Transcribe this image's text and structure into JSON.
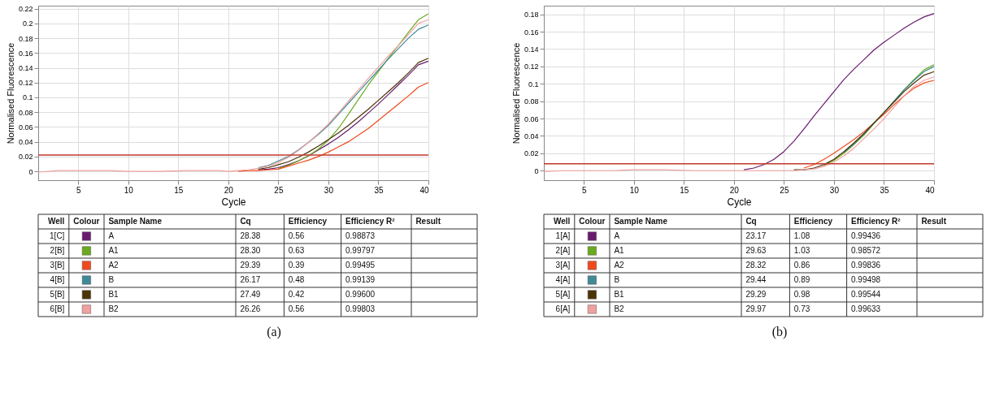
{
  "chart_data": [
    {
      "type": "line",
      "xlabel": "Cycle",
      "ylabel": "Normalised Fluorescence",
      "xlim": [
        1,
        40
      ],
      "xticks": [
        5,
        10,
        15,
        20,
        25,
        30,
        35,
        40
      ],
      "ylim": [
        -0.012,
        0.224
      ],
      "yticks": [
        0,
        0.02,
        0.04,
        0.06,
        0.08,
        0.1,
        0.12,
        0.14,
        0.16,
        0.18,
        0.2,
        0.22
      ],
      "grid": true,
      "legend": "bottom",
      "legend_title": "Sample Name",
      "line_style": "solid",
      "x": [
        1,
        3,
        5,
        8,
        10,
        13,
        16,
        19,
        20,
        21,
        22,
        23,
        24,
        25,
        26,
        27,
        28,
        29,
        30,
        31,
        32,
        33,
        34,
        35,
        36,
        37,
        38,
        39,
        40
      ],
      "series": [
        {
          "name": "A",
          "color": "#6a1b6e",
          "values": [
            null,
            null,
            null,
            null,
            null,
            null,
            null,
            null,
            null,
            null,
            null,
            0.002,
            0.003,
            0.005,
            0.009,
            0.014,
            0.021,
            0.029,
            0.037,
            0.046,
            0.056,
            0.067,
            0.079,
            0.091,
            0.104,
            0.117,
            0.13,
            0.144,
            0.149
          ]
        },
        {
          "name": "A1",
          "color": "#6aaa1e",
          "values": [
            null,
            null,
            null,
            null,
            null,
            null,
            null,
            null,
            null,
            null,
            null,
            null,
            null,
            0.004,
            0.008,
            0.014,
            0.021,
            0.03,
            0.042,
            0.058,
            0.077,
            0.097,
            0.117,
            0.135,
            0.153,
            0.17,
            0.188,
            0.205,
            0.213
          ]
        },
        {
          "name": "A2",
          "color": "#f04a1c",
          "values": [
            null,
            null,
            null,
            null,
            null,
            null,
            null,
            null,
            null,
            0,
            0.001,
            0.001,
            0.002,
            0.003,
            0.007,
            0.011,
            0.015,
            0.02,
            0.026,
            0.033,
            0.04,
            0.049,
            0.058,
            0.069,
            0.08,
            0.091,
            0.102,
            0.114,
            0.12
          ]
        },
        {
          "name": "B",
          "color": "#3f8a96",
          "values": [
            null,
            null,
            null,
            null,
            null,
            null,
            null,
            null,
            null,
            null,
            null,
            0.005,
            0.008,
            0.014,
            0.02,
            0.029,
            0.039,
            0.05,
            0.062,
            0.077,
            0.092,
            0.107,
            0.122,
            0.137,
            0.152,
            0.166,
            0.18,
            0.192,
            0.198
          ]
        },
        {
          "name": "B1",
          "color": "#4a3408",
          "values": [
            null,
            null,
            null,
            null,
            null,
            null,
            null,
            null,
            null,
            null,
            null,
            0.003,
            0.005,
            0.009,
            0.013,
            0.019,
            0.026,
            0.034,
            0.043,
            0.052,
            0.062,
            0.073,
            0.084,
            0.096,
            0.108,
            0.12,
            0.133,
            0.147,
            0.153
          ]
        },
        {
          "name": "B2",
          "color": "#f0a0a0",
          "values": [
            -0.001,
            0.001,
            0.001,
            0.001,
            0,
            0,
            0.001,
            0.001,
            0,
            0.001,
            0.002,
            0.004,
            0.007,
            0.012,
            0.019,
            0.028,
            0.039,
            0.051,
            0.064,
            0.079,
            0.095,
            0.11,
            0.126,
            0.141,
            0.156,
            0.17,
            0.185,
            0.2,
            0.205
          ]
        }
      ],
      "ref_lines": [
        {
          "axis": "y",
          "value": 0.022,
          "color": "#c0392b"
        }
      ],
      "annotations": [
        "Well",
        "Colour",
        "Cq",
        "Efficiency",
        "Efficiency R²",
        "Result",
        "1[C]",
        "28.38",
        "0.56",
        "0.98873",
        "2[B]",
        "28.30",
        "0.63",
        "0.99797",
        "3[B]",
        "29.39",
        "0.39",
        "0.99495",
        "4[B]",
        "26.17",
        "0.48",
        "0.99139",
        "5[B]",
        "27.49",
        "0.42",
        "0.99600",
        "6[B]",
        "26.26",
        "0.56",
        "0.99803",
        "(a)"
      ]
    },
    {
      "type": "line",
      "xlabel": "Cycle",
      "ylabel": "Normalised Fluorescence",
      "xlim": [
        1,
        40
      ],
      "xticks": [
        5,
        10,
        15,
        20,
        25,
        30,
        35,
        40
      ],
      "ylim": [
        -0.011,
        0.19
      ],
      "yticks": [
        0,
        0.02,
        0.04,
        0.06,
        0.08,
        0.1,
        0.12,
        0.14,
        0.16,
        0.18
      ],
      "grid": true,
      "legend": "bottom",
      "legend_title": "Sample Name",
      "line_style": "solid",
      "x": [
        1,
        3,
        5,
        8,
        10,
        13,
        16,
        19,
        20,
        21,
        22,
        23,
        24,
        25,
        26,
        27,
        28,
        29,
        30,
        31,
        32,
        33,
        34,
        35,
        36,
        37,
        38,
        39,
        40
      ],
      "series": [
        {
          "name": "A",
          "color": "#6a1b6e",
          "values": [
            null,
            null,
            null,
            null,
            null,
            null,
            null,
            null,
            null,
            0.001,
            0.003,
            0.007,
            0.013,
            0.022,
            0.034,
            0.048,
            0.063,
            0.077,
            0.091,
            0.105,
            0.117,
            0.128,
            0.139,
            0.148,
            0.156,
            0.164,
            0.171,
            0.177,
            0.181
          ]
        },
        {
          "name": "A1",
          "color": "#6aaa1e",
          "values": [
            null,
            null,
            null,
            null,
            null,
            null,
            null,
            null,
            null,
            null,
            null,
            null,
            null,
            null,
            null,
            null,
            null,
            0.006,
            0.012,
            0.02,
            0.03,
            0.041,
            0.054,
            0.067,
            0.08,
            0.093,
            0.105,
            0.116,
            0.122
          ]
        },
        {
          "name": "A2",
          "color": "#f04a1c",
          "values": [
            null,
            null,
            null,
            null,
            null,
            null,
            null,
            null,
            null,
            null,
            null,
            null,
            null,
            null,
            null,
            0.003,
            0.007,
            0.013,
            0.02,
            0.028,
            0.036,
            0.045,
            0.055,
            0.065,
            0.076,
            0.086,
            0.095,
            0.101,
            0.104
          ]
        },
        {
          "name": "B",
          "color": "#3f8a96",
          "values": [
            null,
            null,
            null,
            null,
            null,
            null,
            null,
            null,
            null,
            null,
            null,
            null,
            null,
            null,
            null,
            null,
            null,
            null,
            null,
            0.021,
            0.031,
            0.042,
            0.055,
            0.067,
            0.08,
            0.093,
            0.104,
            0.114,
            0.12
          ]
        },
        {
          "name": "B1",
          "color": "#4a3408",
          "values": [
            null,
            null,
            null,
            null,
            null,
            null,
            null,
            null,
            null,
            null,
            null,
            null,
            null,
            null,
            0.001,
            0.001,
            0.003,
            0.007,
            0.013,
            0.022,
            0.032,
            0.043,
            0.055,
            0.067,
            0.079,
            0.091,
            0.101,
            0.11,
            0.114
          ]
        },
        {
          "name": "B2",
          "color": "#f0a0a0",
          "values": [
            -0.001,
            0,
            0,
            0,
            0.001,
            0.001,
            0,
            0,
            0,
            0,
            0,
            0,
            0,
            0,
            0,
            0.001,
            0.002,
            0.005,
            0.01,
            0.017,
            0.026,
            0.037,
            0.048,
            0.06,
            0.073,
            0.086,
            0.097,
            0.104,
            0.108
          ]
        }
      ],
      "ref_lines": [
        {
          "axis": "y",
          "value": 0.008,
          "color": "#c0392b"
        }
      ],
      "annotations": [
        "Well",
        "Colour",
        "Cq",
        "Efficiency",
        "Efficiency R²",
        "Result",
        "1[A]",
        "23.17",
        "1.08",
        "0.99436",
        "2[A]",
        "29.63",
        "1.03",
        "0.98572",
        "3[A]",
        "28.32",
        "0.86",
        "0.99836",
        "4[A]",
        "29.44",
        "0.89",
        "0.99498",
        "5[A]",
        "29.29",
        "0.98",
        "0.99544",
        "6[A]",
        "29.97",
        "0.73",
        "0.99633",
        "(b)"
      ]
    }
  ]
}
